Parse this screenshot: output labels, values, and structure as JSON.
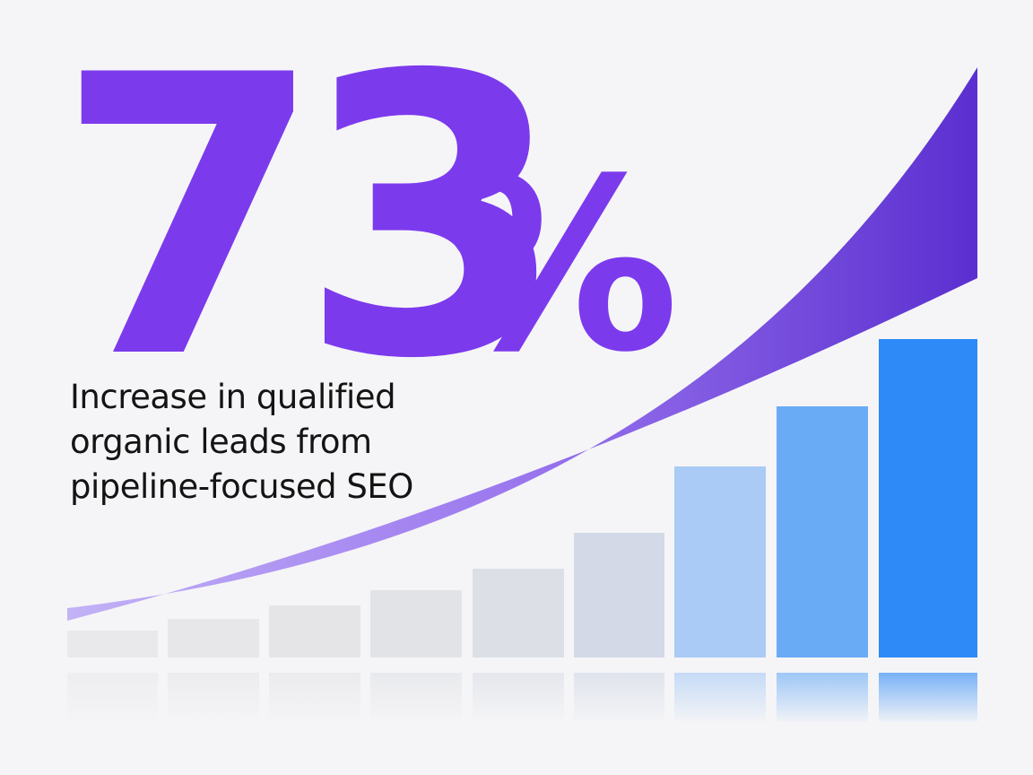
{
  "headline": {
    "number": "73",
    "unit": "%"
  },
  "caption": {
    "lines": [
      "Increase in qualified",
      "organic leads from",
      "pipeline-focused SEO"
    ]
  }
}
